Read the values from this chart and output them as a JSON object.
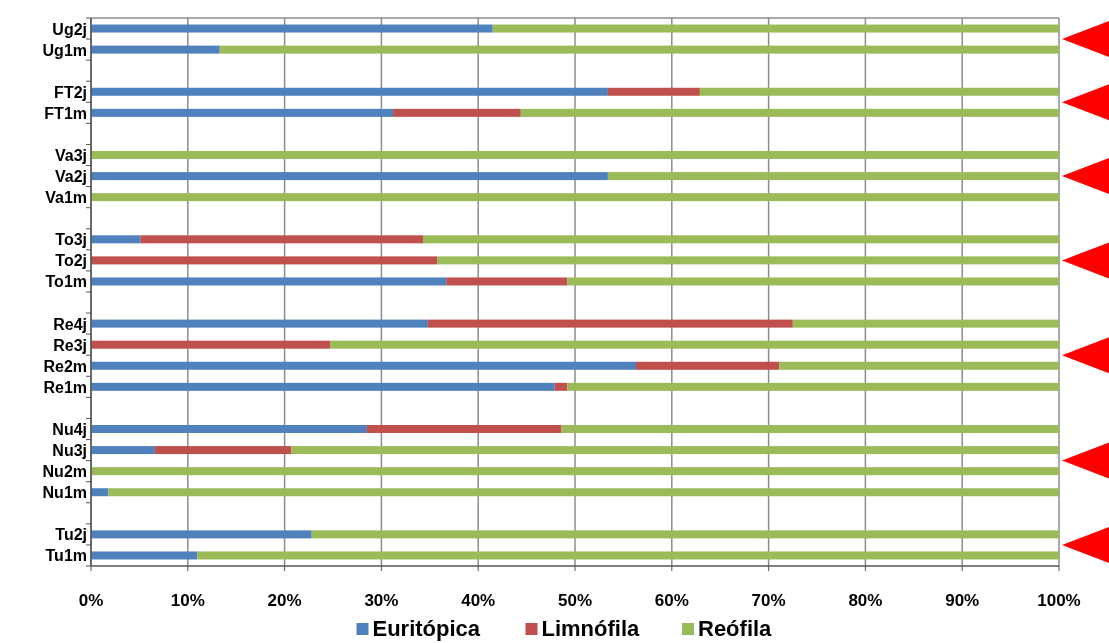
{
  "chart_data": {
    "type": "bar",
    "orientation": "horizontal",
    "stacked": true,
    "categories": [
      "Ug2j",
      "Ug1m",
      null,
      "FT2j",
      "FT1m",
      null,
      "Va3j",
      "Va2j",
      "Va1m",
      null,
      "To3j",
      "To2j",
      "To1m",
      null,
      "Re4j",
      "Re3j",
      "Re2m",
      "Re1m",
      null,
      "Nu4j",
      "Nu3j",
      "Nu2m",
      "Nu1m",
      null,
      "Tu2j",
      "Tu1m"
    ],
    "series": [
      {
        "name": "Euritópica",
        "color": "#4f81bd",
        "values": [
          41.5,
          13.3,
          null,
          53.4,
          31.2,
          null,
          0,
          53.4,
          0,
          null,
          5.1,
          0,
          36.7,
          null,
          34.8,
          0,
          56.3,
          47.9,
          null,
          28.5,
          6.6,
          0,
          1.8,
          null,
          22.8,
          11.0
        ]
      },
      {
        "name": "Limnófila",
        "color": "#c0504d",
        "values": [
          0,
          0,
          null,
          9.5,
          13.2,
          null,
          0,
          0,
          0,
          null,
          29.2,
          35.8,
          12.5,
          null,
          37.7,
          24.7,
          14.8,
          1.3,
          null,
          20.1,
          14.1,
          0,
          0,
          null,
          0,
          0
        ]
      },
      {
        "name": "Reófila",
        "color": "#9bbb59",
        "values": [
          58.5,
          86.7,
          null,
          37.1,
          55.6,
          null,
          100,
          46.6,
          100,
          null,
          65.7,
          64.2,
          50.8,
          null,
          27.5,
          75.3,
          28.9,
          50.8,
          null,
          51.4,
          79.3,
          100,
          98.2,
          null,
          77.2,
          89.0
        ]
      }
    ],
    "xlim": [
      0,
      100
    ],
    "xticks": [
      {
        "value": 0,
        "label": "0%"
      },
      {
        "value": 10,
        "label": "10%"
      },
      {
        "value": 20,
        "label": "20%"
      },
      {
        "value": 30,
        "label": "30%"
      },
      {
        "value": 40,
        "label": "40%"
      },
      {
        "value": 50,
        "label": "50%"
      },
      {
        "value": 60,
        "label": "60%"
      },
      {
        "value": 70,
        "label": "70%"
      },
      {
        "value": 80,
        "label": "80%"
      },
      {
        "value": 90,
        "label": "90%"
      },
      {
        "value": 100,
        "label": "100%"
      }
    ],
    "grid": "x",
    "legend": "bottom"
  }
}
